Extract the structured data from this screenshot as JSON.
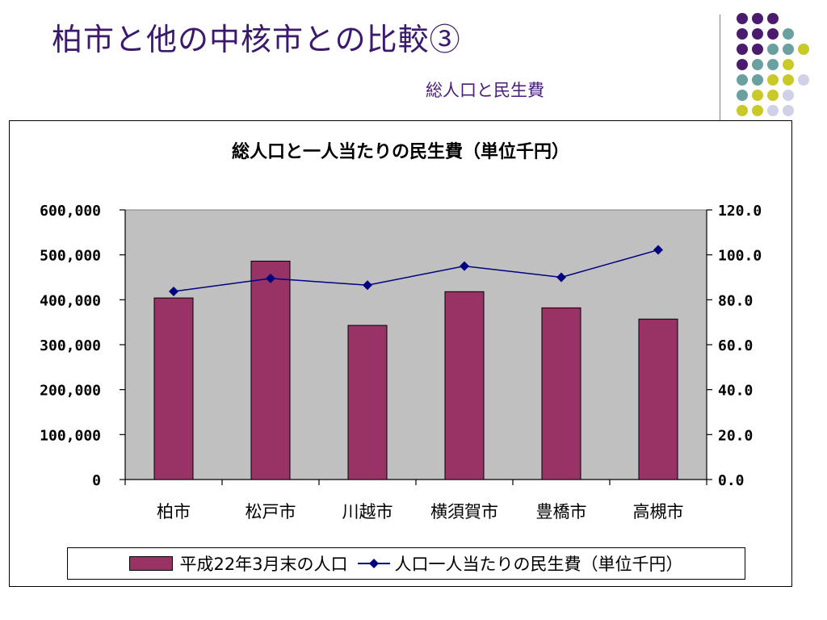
{
  "slide": {
    "title": "柏市と他の中核市との比較③",
    "subtitle": "総人口と民生費"
  },
  "decor_colors": {
    "purple": "#4b1c6e",
    "teal": "#6aa1a0",
    "yellow": "#c9c92a",
    "lavender": "#d0d0e6"
  },
  "chart_data": {
    "type": "bar",
    "title": "総人口と一人当たりの民生費（単位千円）",
    "categories": [
      "柏市",
      "松戸市",
      "川越市",
      "横須賀市",
      "豊橋市",
      "高槻市"
    ],
    "series": [
      {
        "name": "平成22年3月末の人口",
        "type": "bar",
        "axis": "left",
        "color": "#993366",
        "values": [
          404000,
          486000,
          343000,
          418000,
          382000,
          357000
        ]
      },
      {
        "name": "人口一人当たりの民生費（単位千円）",
        "type": "line",
        "axis": "right",
        "color": "#000080",
        "marker": "diamond",
        "values": [
          83.7,
          89.5,
          86.5,
          95.0,
          90.0,
          102.2
        ]
      }
    ],
    "y_left": {
      "min": 0,
      "max": 600000,
      "tick_labels": [
        "0",
        "100,000",
        "200,000",
        "300,000",
        "400,000",
        "500,000",
        "600,000"
      ]
    },
    "y_right": {
      "min": 0,
      "max": 120,
      "tick_labels": [
        "0.0",
        "20.0",
        "40.0",
        "60.0",
        "80.0",
        "100.0",
        "120.0"
      ]
    },
    "plot_background": "#c0c0c0",
    "grid": false,
    "legend_position": "bottom"
  }
}
